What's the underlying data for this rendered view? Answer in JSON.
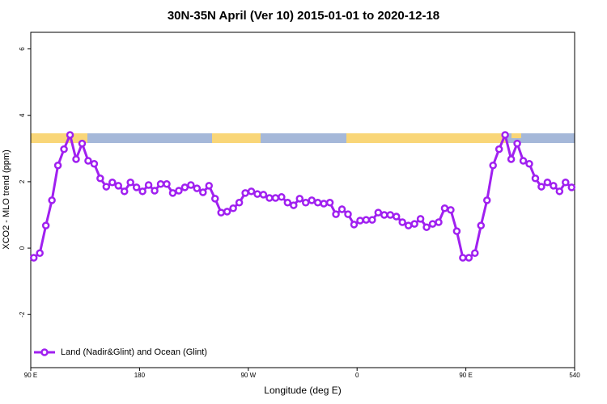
{
  "chart_data": {
    "type": "line",
    "title": "30N-35N April (Ver 10)   2015-01-01 to 2020-12-18",
    "x_label": "Longitude (deg E)",
    "y_label": "XCO2 - MLO trend (ppm)",
    "xlim": [
      90,
      540
    ],
    "xticks": [
      {
        "value": 90,
        "label": "90 E"
      },
      180,
      {
        "value": 270,
        "label": "90 W"
      },
      {
        "value": 360,
        "label": "0"
      },
      {
        "value": 450,
        "label": "90 E"
      },
      540
    ],
    "ylim": [
      -3.6,
      6.5
    ],
    "yticks": [
      -2,
      0,
      2,
      4,
      6
    ],
    "legend": "bottom-left",
    "x": [
      92.5,
      97.5,
      102.5,
      107.5,
      112.5,
      117.5,
      122.5,
      127.5,
      132.5,
      137.5,
      142.5,
      147.5,
      152.5,
      157.5,
      162.5,
      167.5,
      172.5,
      177.5,
      182.5,
      187.5,
      192.5,
      197.5,
      202.5,
      207.5,
      212.5,
      217.5,
      222.5,
      227.5,
      232.5,
      237.5,
      242.5,
      247.5,
      252.5,
      257.5,
      262.5,
      267.5,
      272.5,
      277.5,
      282.5,
      287.5,
      292.5,
      297.5,
      302.5,
      307.5,
      312.5,
      317.5,
      322.5,
      327.5,
      332.5,
      337.5,
      342.5,
      347.5,
      352.5,
      357.5,
      362.5,
      367.5,
      372.5,
      377.5,
      382.5,
      387.5,
      392.5,
      397.5,
      402.5,
      407.5,
      412.5,
      417.5,
      422.5,
      427.5,
      432.5,
      437.5,
      442.5,
      447.5,
      452.5,
      457.5,
      462.5,
      467.5,
      472.5,
      477.5,
      482.5,
      487.5,
      492.5,
      497.5,
      502.5,
      507.5,
      512.5,
      517.5,
      522.5,
      527.5,
      532.5,
      537.5
    ],
    "series": [
      {
        "name": "Land (Nadir&Glint) and Ocean (Glint)",
        "color": "#a020f0",
        "values": [
          -0.29,
          -0.15,
          0.68,
          1.44,
          2.49,
          2.98,
          3.41,
          2.68,
          3.15,
          2.63,
          2.54,
          2.1,
          1.85,
          1.98,
          1.88,
          1.71,
          1.98,
          1.83,
          1.71,
          1.9,
          1.73,
          1.93,
          1.93,
          1.66,
          1.73,
          1.83,
          1.9,
          1.8,
          1.68,
          1.88,
          1.49,
          1.07,
          1.1,
          1.2,
          1.37,
          1.66,
          1.71,
          1.63,
          1.61,
          1.51,
          1.51,
          1.54,
          1.37,
          1.29,
          1.49,
          1.37,
          1.44,
          1.37,
          1.34,
          1.37,
          1.02,
          1.17,
          1.02,
          0.71,
          0.83,
          0.85,
          0.85,
          1.07,
          1.0,
          1.0,
          0.95,
          0.78,
          0.68,
          0.73,
          0.88,
          0.63,
          0.73,
          0.78,
          1.2,
          1.15,
          0.51,
          -0.29,
          -0.29,
          -0.15,
          0.68,
          1.44,
          2.49,
          2.98,
          3.41,
          2.68,
          3.15,
          2.63,
          2.54,
          2.1,
          1.85,
          1.98,
          1.88,
          1.71,
          1.98,
          1.83
        ]
      }
    ]
  }
}
